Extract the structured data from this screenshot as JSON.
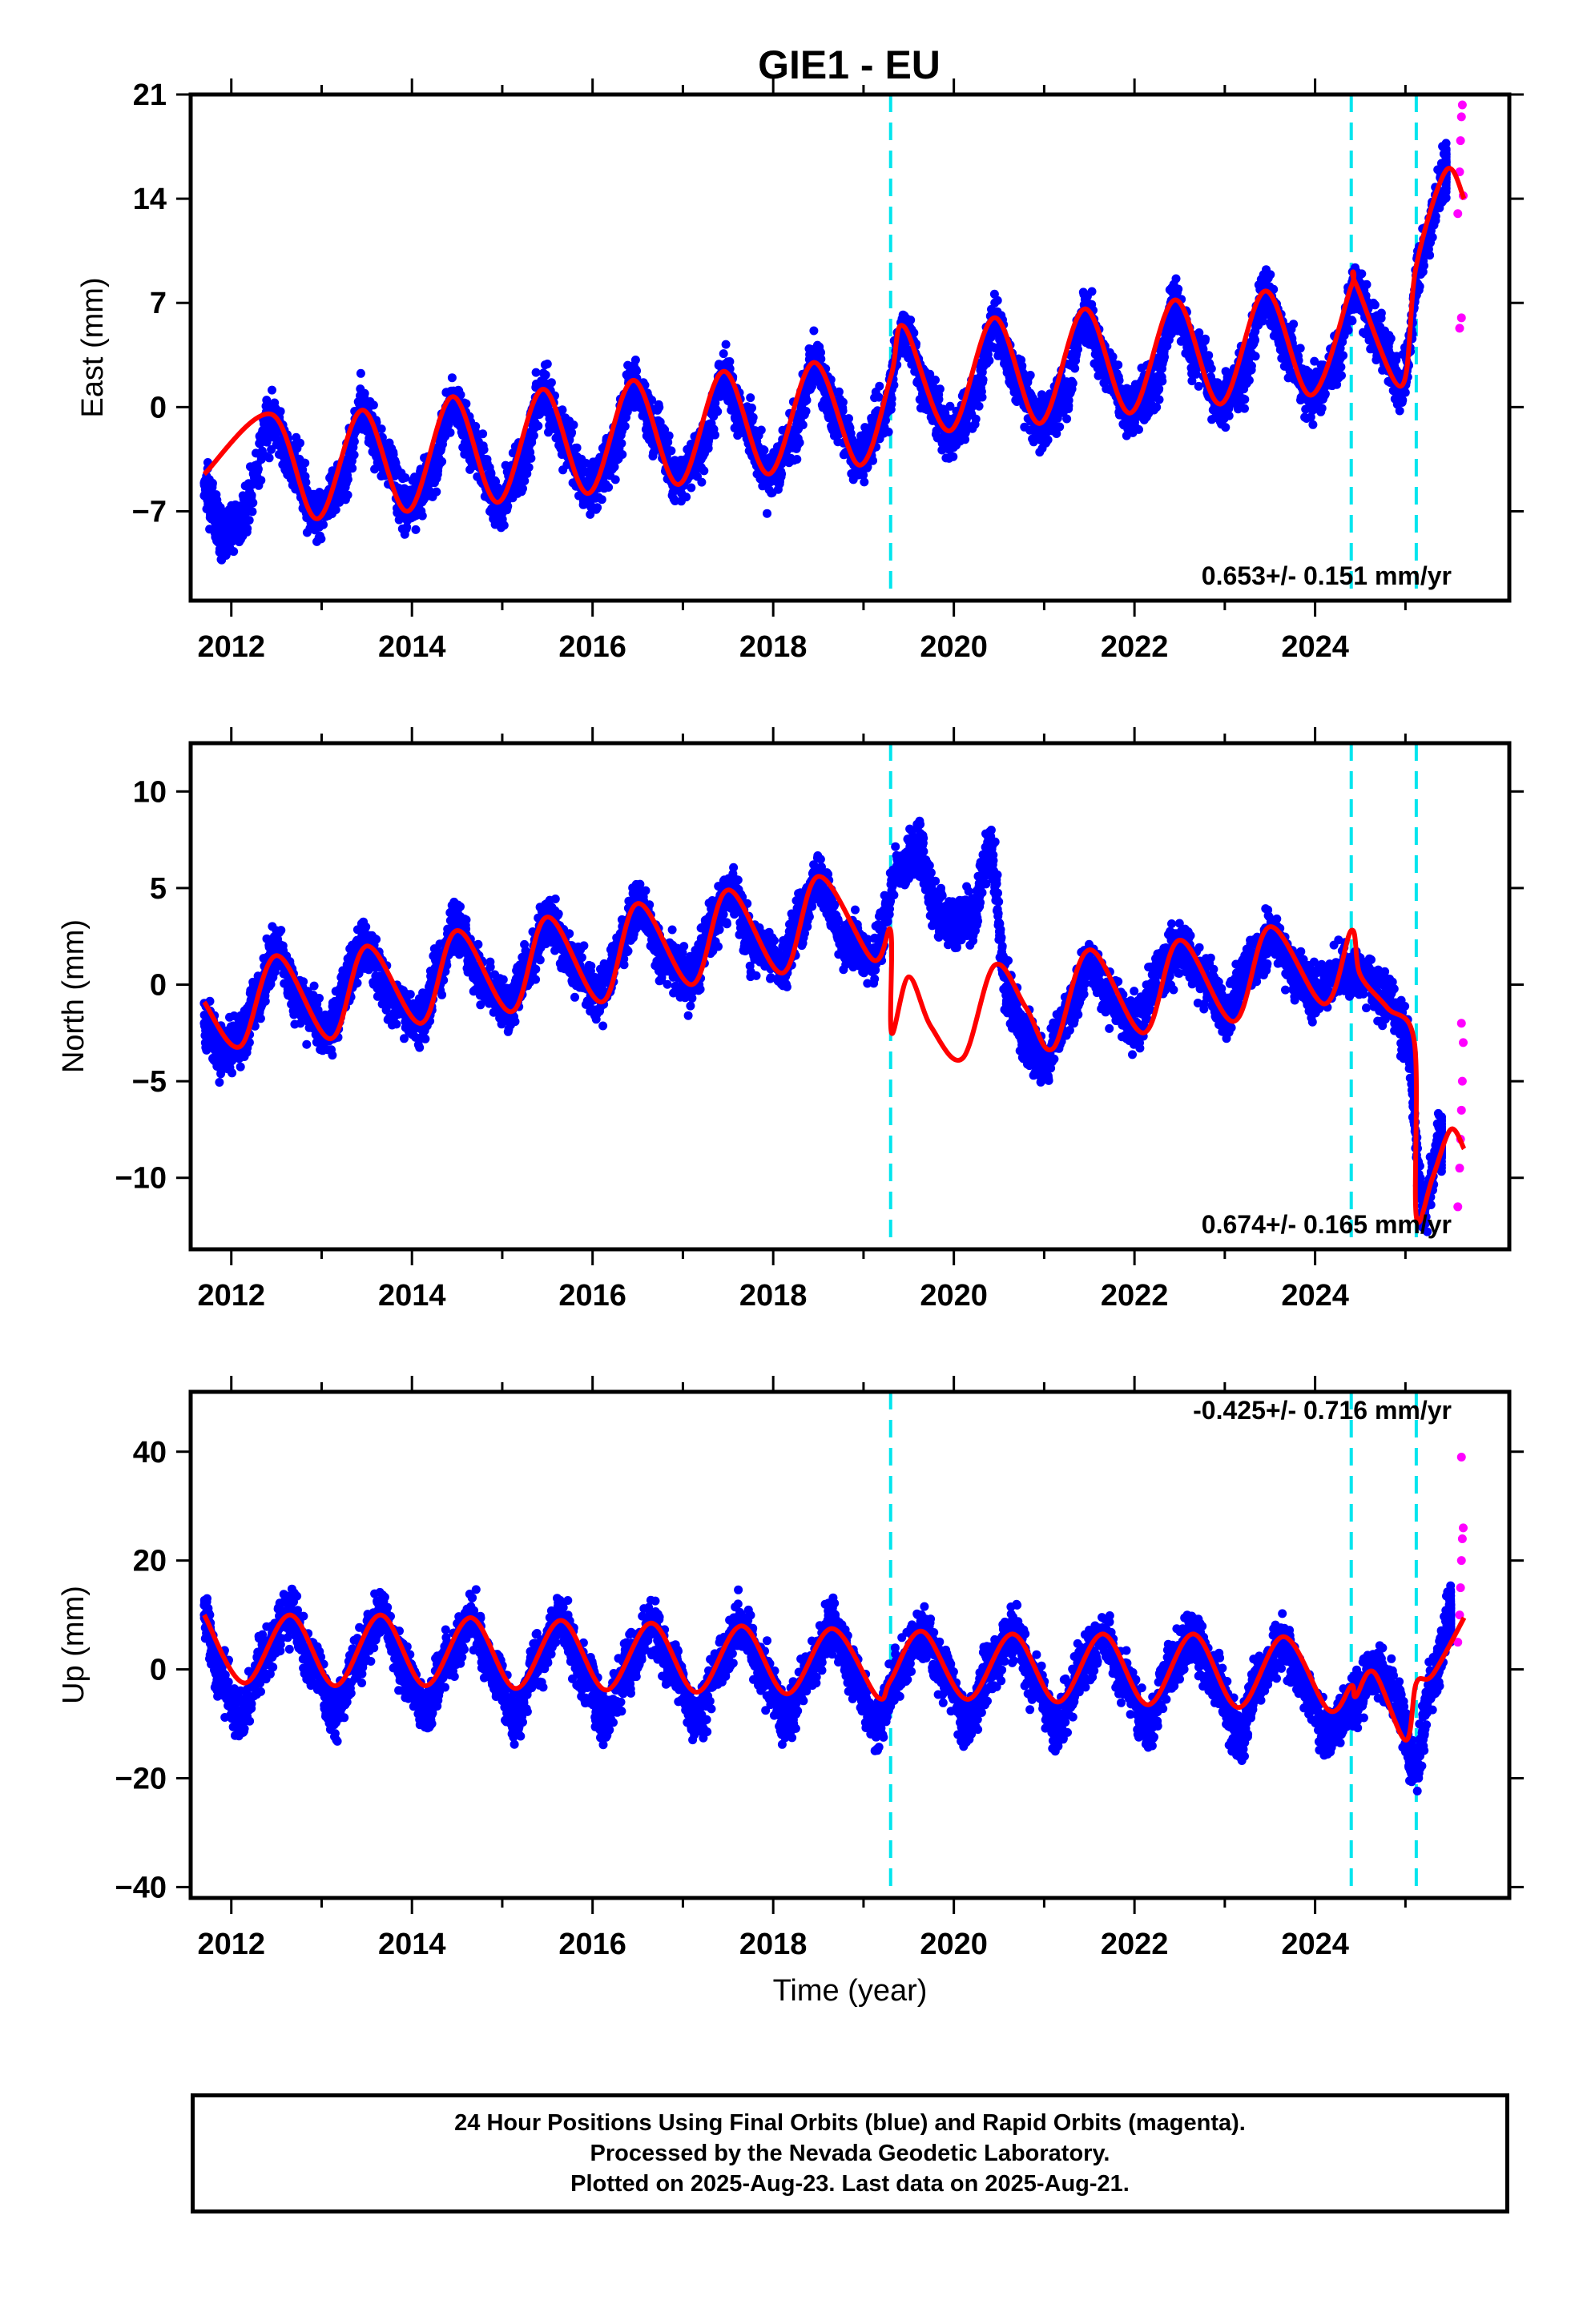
{
  "title": "GIE1 - EU",
  "colors": {
    "final_orbits": "#0000ff",
    "rapid_orbits": "#ff00ff",
    "model": "#ff0000",
    "events": "#00e5ee"
  },
  "footer": {
    "line1": "24 Hour Positions Using Final Orbits (blue) and Rapid Orbits (magenta).",
    "line2": "Processed by the Nevada Geodetic Laboratory.",
    "line3": "Plotted on 2025-Aug-23. Last data on 2025-Aug-21."
  },
  "chart_data": [
    {
      "type": "scatter",
      "title": "GIE1 - EU",
      "ylabel": "East (mm)",
      "xlabel": "",
      "xlim": [
        2011.55,
        2026.15
      ],
      "ylim": [
        -13,
        21
      ],
      "xticks": [
        2012,
        2014,
        2016,
        2018,
        2020,
        2022,
        2024
      ],
      "yticks": [
        -7,
        0,
        7,
        14,
        21
      ],
      "event_lines": [
        2019.3,
        2024.4,
        2025.12
      ],
      "rate_label": "0.653+/- 0.151 mm/yr",
      "grid": false,
      "series": [
        {
          "name": "Final Orbits",
          "style": "dots",
          "x": [
            2011.7,
            2011.9,
            2012.1,
            2012.45,
            2012.7,
            2012.95,
            2013.2,
            2013.45,
            2013.7,
            2013.95,
            2014.2,
            2014.45,
            2014.7,
            2014.95,
            2015.2,
            2015.45,
            2015.7,
            2015.95,
            2016.2,
            2016.45,
            2016.7,
            2016.95,
            2017.2,
            2017.45,
            2017.7,
            2017.95,
            2018.2,
            2018.45,
            2018.7,
            2018.95,
            2019.2,
            2019.45,
            2019.7,
            2019.95,
            2020.2,
            2020.45,
            2020.7,
            2020.95,
            2021.2,
            2021.45,
            2021.7,
            2021.95,
            2022.2,
            2022.45,
            2022.7,
            2022.95,
            2023.2,
            2023.45,
            2023.7,
            2023.95,
            2024.2,
            2024.45,
            2024.7,
            2024.95,
            2025.2,
            2025.45
          ],
          "y": [
            -5.1,
            -8.4,
            -7.6,
            -0.8,
            -3.9,
            -7.5,
            -5.2,
            -0.3,
            -3.4,
            -6.8,
            -4.6,
            0.4,
            -2.8,
            -6.4,
            -4.1,
            1.0,
            -2.3,
            -5.8,
            -3.5,
            1.7,
            -1.7,
            -5.1,
            -2.9,
            2.3,
            -1.1,
            -4.5,
            -2.4,
            3.0,
            -0.5,
            -3.6,
            -0.8,
            5.1,
            1.0,
            -1.7,
            0.0,
            5.7,
            1.8,
            -1.0,
            0.4,
            6.3,
            2.6,
            -0.4,
            1.2,
            6.9,
            3.3,
            0.2,
            1.9,
            7.5,
            4.0,
            0.8,
            2.7,
            8.0,
            4.6,
            1.3,
            10.5,
            15.8
          ]
        },
        {
          "name": "Rapid Orbits",
          "style": "dots",
          "x": [
            2025.58,
            2025.6,
            2025.61,
            2025.62,
            2025.63,
            2025.64,
            2025.62,
            2025.6
          ],
          "y": [
            13.0,
            15.8,
            17.9,
            19.5,
            20.3,
            14.2,
            6.0,
            5.3
          ]
        },
        {
          "name": "Model",
          "style": "line",
          "x": [
            2011.7,
            2012.45,
            2012.95,
            2013.45,
            2013.95,
            2014.45,
            2014.95,
            2015.45,
            2015.95,
            2016.45,
            2016.95,
            2017.45,
            2017.95,
            2018.45,
            2018.95,
            2019.3,
            2019.45,
            2019.95,
            2020.45,
            2020.95,
            2021.45,
            2021.95,
            2022.45,
            2022.95,
            2023.45,
            2023.95,
            2024.4,
            2024.45,
            2024.95,
            2025.12,
            2025.45,
            2025.65
          ],
          "y": [
            -4.5,
            -0.5,
            -7.5,
            -0.2,
            -7.0,
            0.7,
            -6.4,
            1.2,
            -5.8,
            1.8,
            -5.2,
            2.4,
            -4.5,
            3.0,
            -3.9,
            2.0,
            5.4,
            -1.6,
            6.0,
            -1.1,
            6.6,
            -0.4,
            7.2,
            0.2,
            7.8,
            0.8,
            8.1,
            8.3,
            1.4,
            9.5,
            15.9,
            14.0
          ]
        }
      ]
    },
    {
      "type": "scatter",
      "ylabel": "North (mm)",
      "xlabel": "",
      "xlim": [
        2011.55,
        2026.15
      ],
      "ylim": [
        -13.7,
        12.5
      ],
      "xticks": [
        2012,
        2014,
        2016,
        2018,
        2020,
        2022,
        2024
      ],
      "yticks": [
        -10,
        -5,
        0,
        5,
        10
      ],
      "event_lines": [
        2019.3,
        2024.4,
        2025.12
      ],
      "rate_label": "0.674+/- 0.165 mm/yr",
      "grid": false,
      "series": [
        {
          "name": "Final Orbits",
          "style": "dots",
          "x": [
            2011.7,
            2011.9,
            2012.1,
            2012.3,
            2012.5,
            2012.8,
            2013.1,
            2013.3,
            2013.5,
            2013.8,
            2014.1,
            2014.3,
            2014.5,
            2014.8,
            2015.1,
            2015.3,
            2015.5,
            2015.8,
            2016.1,
            2016.3,
            2016.5,
            2016.8,
            2017.1,
            2017.3,
            2017.5,
            2017.8,
            2018.1,
            2018.3,
            2018.5,
            2018.8,
            2019.1,
            2019.4,
            2019.6,
            2019.8,
            2020.0,
            2020.2,
            2020.4,
            2020.6,
            2020.8,
            2021.0,
            2021.3,
            2021.5,
            2021.8,
            2022.0,
            2022.3,
            2022.5,
            2022.8,
            2023.0,
            2023.3,
            2023.5,
            2023.8,
            2024.0,
            2024.3,
            2024.5,
            2024.8,
            2025.0,
            2025.2,
            2025.4
          ],
          "y": [
            -2.0,
            -3.5,
            -2.8,
            -0.5,
            1.8,
            -1.0,
            -2.5,
            0.5,
            2.0,
            -0.8,
            -1.9,
            0.8,
            3.0,
            0.2,
            -1.2,
            1.2,
            3.4,
            0.9,
            -0.5,
            2.0,
            4.1,
            1.2,
            0.2,
            2.8,
            4.8,
            2.0,
            1.0,
            3.4,
            5.5,
            2.3,
            1.5,
            6.0,
            7.0,
            4.0,
            3.0,
            3.5,
            7.0,
            -0.5,
            -2.8,
            -4.0,
            -1.0,
            1.0,
            -1.0,
            -2.2,
            0.5,
            2.0,
            0.2,
            -1.5,
            1.0,
            2.5,
            0.5,
            -0.5,
            0.8,
            0.5,
            -0.8,
            -2.5,
            -11.5,
            -8.0
          ]
        },
        {
          "name": "Rapid Orbits",
          "style": "dots",
          "x": [
            2025.58,
            2025.6,
            2025.61,
            2025.62,
            2025.63,
            2025.64,
            2025.62
          ],
          "y": [
            -11.5,
            -9.5,
            -8.0,
            -6.5,
            -5.0,
            -3.0,
            -2.0
          ]
        },
        {
          "name": "Model",
          "style": "line",
          "x": [
            2011.7,
            2012.1,
            2012.5,
            2013.1,
            2013.5,
            2014.1,
            2014.5,
            2015.1,
            2015.5,
            2016.1,
            2016.5,
            2017.1,
            2017.5,
            2018.1,
            2018.5,
            2019.1,
            2019.3,
            2019.31,
            2019.5,
            2019.75,
            2020.1,
            2020.45,
            2020.8,
            2021.1,
            2021.5,
            2022.1,
            2022.5,
            2023.1,
            2023.5,
            2024.1,
            2024.4,
            2024.5,
            2024.8,
            2025.1,
            2025.12,
            2025.3,
            2025.5,
            2025.65
          ],
          "y": [
            -0.9,
            -3.2,
            1.5,
            -2.8,
            2.0,
            -2.0,
            2.8,
            -1.4,
            3.5,
            -0.9,
            4.2,
            0.0,
            4.9,
            0.6,
            5.6,
            1.3,
            2.8,
            -2.5,
            0.4,
            -2.2,
            -3.8,
            1.0,
            -1.2,
            -3.3,
            1.8,
            -2.5,
            2.3,
            -1.9,
            3.0,
            -1.0,
            2.8,
            0.5,
            -1.2,
            -3.0,
            -12.0,
            -10.0,
            -7.5,
            -8.5
          ]
        }
      ]
    },
    {
      "type": "scatter",
      "ylabel": "Up (mm)",
      "xlabel": "Time (year)",
      "xlim": [
        2011.55,
        2026.15
      ],
      "ylim": [
        -42,
        51
      ],
      "xticks": [
        2012,
        2014,
        2016,
        2018,
        2020,
        2022,
        2024
      ],
      "yticks": [
        -40,
        -20,
        0,
        20,
        40
      ],
      "event_lines": [
        2019.3,
        2024.4,
        2025.12
      ],
      "rate_label": "-0.425+/- 0.716 mm/yr",
      "grid": false,
      "series": [
        {
          "name": "Final Orbits",
          "style": "dots",
          "x": [
            2011.7,
            2011.85,
            2012.1,
            2012.35,
            2012.65,
            2012.9,
            2013.15,
            2013.4,
            2013.65,
            2013.9,
            2014.15,
            2014.4,
            2014.65,
            2014.9,
            2015.15,
            2015.4,
            2015.65,
            2015.9,
            2016.15,
            2016.4,
            2016.65,
            2016.9,
            2017.15,
            2017.4,
            2017.65,
            2017.9,
            2018.15,
            2018.4,
            2018.65,
            2018.9,
            2019.15,
            2019.4,
            2019.65,
            2019.9,
            2020.15,
            2020.4,
            2020.65,
            2020.9,
            2021.15,
            2021.4,
            2021.65,
            2021.9,
            2022.15,
            2022.4,
            2022.65,
            2022.9,
            2023.15,
            2023.4,
            2023.65,
            2023.9,
            2024.15,
            2024.4,
            2024.65,
            2024.9,
            2025.1,
            2025.3,
            2025.5
          ],
          "y": [
            10.0,
            0.0,
            -9.0,
            2.0,
            10.0,
            1.0,
            -8.0,
            2.0,
            10.0,
            1.0,
            -8.0,
            2.0,
            9.0,
            0.0,
            -9.0,
            2.0,
            9.0,
            0.0,
            -9.0,
            1.0,
            8.0,
            0.0,
            -9.0,
            1.0,
            8.0,
            -1.0,
            -9.0,
            0.0,
            8.0,
            -1.0,
            -10.0,
            0.0,
            7.0,
            -1.0,
            -10.0,
            0.0,
            7.0,
            -2.0,
            -11.0,
            0.0,
            6.0,
            -2.0,
            -11.0,
            0.0,
            6.0,
            -2.0,
            -12.0,
            -1.0,
            5.0,
            -3.0,
            -12.0,
            -6.0,
            0.0,
            -5.0,
            -18.0,
            -2.0,
            10.0
          ]
        },
        {
          "name": "Rapid Orbits",
          "style": "dots",
          "x": [
            2025.58,
            2025.6,
            2025.61,
            2025.62,
            2025.63,
            2025.64,
            2025.62
          ],
          "y": [
            5.0,
            10.0,
            15.0,
            20.0,
            24.0,
            26.0,
            39.0
          ]
        },
        {
          "name": "Model",
          "style": "line",
          "x": [
            2011.7,
            2012.15,
            2012.65,
            2013.15,
            2013.65,
            2014.15,
            2014.65,
            2015.15,
            2015.65,
            2016.15,
            2016.65,
            2017.15,
            2017.65,
            2018.15,
            2018.65,
            2019.15,
            2019.3,
            2019.65,
            2020.15,
            2020.65,
            2021.15,
            2021.65,
            2022.15,
            2022.65,
            2023.15,
            2023.65,
            2024.15,
            2024.4,
            2024.45,
            2024.65,
            2025.0,
            2025.12,
            2025.3,
            2025.65
          ],
          "y": [
            10.0,
            -2.5,
            10.0,
            -3.0,
            10.0,
            -3.0,
            9.5,
            -3.5,
            9.0,
            -3.8,
            8.5,
            -4.2,
            8.0,
            -4.5,
            7.5,
            -5.0,
            -2.0,
            7.0,
            -5.5,
            6.5,
            -6.0,
            6.5,
            -6.5,
            6.5,
            -7.0,
            6.0,
            -7.5,
            -3.0,
            -5.0,
            -0.5,
            -13.0,
            -2.5,
            -1.0,
            9.5
          ]
        }
      ]
    }
  ]
}
